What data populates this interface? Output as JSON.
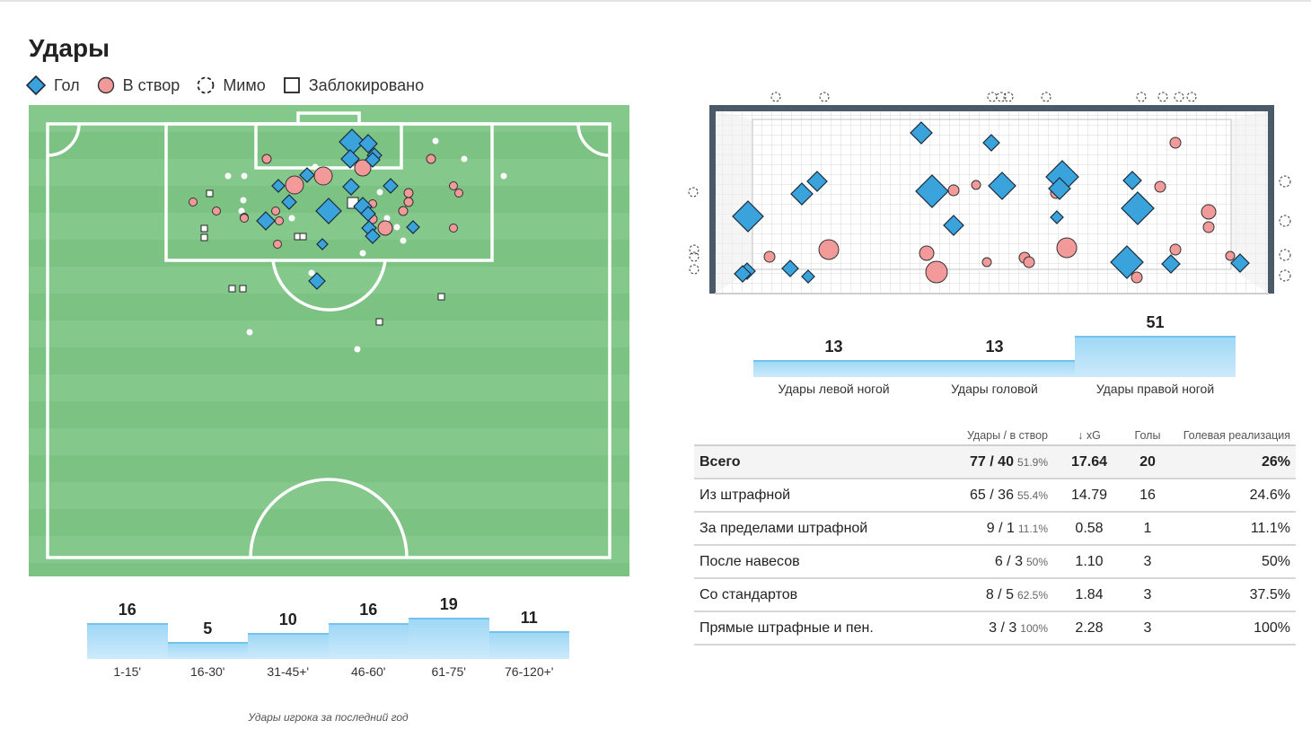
{
  "title": "Удары",
  "legend": [
    {
      "label": "Гол",
      "icon": "diamond-icon"
    },
    {
      "label": "В створ",
      "icon": "circle-icon"
    },
    {
      "label": "Мимо",
      "icon": "dashed-circle-icon"
    },
    {
      "label": "Заблокировано",
      "icon": "square-icon"
    }
  ],
  "colors": {
    "goal": "#3aa3dc",
    "on_target": "#f29a9a",
    "pitch": "#7cc283",
    "goal_frame": "#4b5a69",
    "bar": "#9fd8f5"
  },
  "time_bars": {
    "categories": [
      "1-15'",
      "16-30'",
      "31-45+'",
      "46-60'",
      "61-75'",
      "76-120+'"
    ],
    "values": [
      16,
      5,
      10,
      16,
      19,
      11
    ],
    "max": 19
  },
  "caption": "Удары игрока за последний год",
  "body_bars": {
    "categories": [
      "Удары левой ногой",
      "Удары головой",
      "Удары правой ногой"
    ],
    "values": [
      13,
      13,
      51
    ],
    "max": 51
  },
  "stats": {
    "headers": [
      "Удары / в створ",
      "xG",
      "Голы",
      "Голевая реализация"
    ],
    "sort_indicator": "↓",
    "rows": [
      {
        "label": "Всего",
        "shots": "77 / 40",
        "pct": "51.9%",
        "xg": "17.64",
        "goals": "20",
        "conv": "26%",
        "total": true
      },
      {
        "label": "Из штрафной",
        "shots": "65 / 36",
        "pct": "55.4%",
        "xg": "14.79",
        "goals": "16",
        "conv": "24.6%"
      },
      {
        "label": "За пределами штрафной",
        "shots": "9 / 1",
        "pct": "11.1%",
        "xg": "0.58",
        "goals": "1",
        "conv": "11.1%"
      },
      {
        "label": "После навесов",
        "shots": "6 / 3",
        "pct": "50%",
        "xg": "1.10",
        "goals": "3",
        "conv": "50%"
      },
      {
        "label": "Со стандартов",
        "shots": "8 / 5",
        "pct": "62.5%",
        "xg": "1.84",
        "goals": "3",
        "conv": "37.5%"
      },
      {
        "label": "Прямые штрафные и пен.",
        "shots": "3 / 3",
        "pct": "100%",
        "xg": "2.28",
        "goals": "3",
        "conv": "100%"
      }
    ]
  }
}
